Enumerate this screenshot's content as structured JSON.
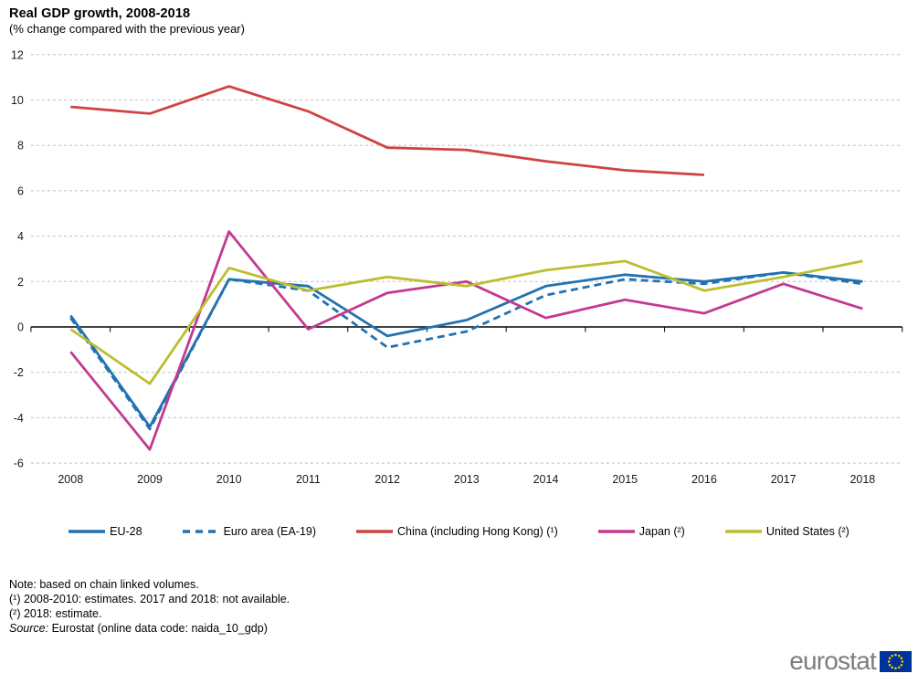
{
  "chart_data": {
    "type": "line",
    "title": "Real GDP growth, 2008-2018",
    "subtitle": "(% change compared with the previous year)",
    "x": [
      2008,
      2009,
      2010,
      2011,
      2012,
      2013,
      2014,
      2015,
      2016,
      2017,
      2018
    ],
    "series": [
      {
        "name": "EU-28",
        "style": "solid",
        "color": "#2272B2",
        "values": [
          0.5,
          -4.4,
          2.1,
          1.8,
          -0.4,
          0.3,
          1.8,
          2.3,
          2.0,
          2.4,
          2.0
        ]
      },
      {
        "name": "Euro area (EA-19)",
        "style": "dashed",
        "color": "#2272B2",
        "values": [
          0.4,
          -4.5,
          2.1,
          1.6,
          -0.9,
          -0.2,
          1.4,
          2.1,
          1.9,
          2.4,
          1.9
        ]
      },
      {
        "name": "China (including Hong Kong) (¹)",
        "style": "solid",
        "color": "#CE4343",
        "values": [
          9.7,
          9.4,
          10.6,
          9.5,
          7.9,
          7.8,
          7.3,
          6.9,
          6.7,
          null,
          null
        ]
      },
      {
        "name": "Japan (²)",
        "style": "solid",
        "color": "#C23A90",
        "values": [
          -1.1,
          -5.4,
          4.2,
          -0.1,
          1.5,
          2.0,
          0.4,
          1.2,
          0.6,
          1.9,
          0.8
        ]
      },
      {
        "name": "United States (²)",
        "style": "solid",
        "color": "#BCBE31",
        "values": [
          -0.1,
          -2.5,
          2.6,
          1.6,
          2.2,
          1.8,
          2.5,
          2.9,
          1.6,
          2.2,
          2.9
        ]
      }
    ],
    "xlabel": "",
    "ylabel": "",
    "ylim": [
      -6,
      12
    ],
    "ytick_step": 2,
    "grid": "horizontal-dashed",
    "grid_color": "#BFBFBF",
    "axis_color": "#000000",
    "legend_position": "bottom"
  },
  "notes": {
    "note": "Note: based on chain linked volumes.",
    "footnote1": "(¹) 2008-2010: estimates. 2017 and 2018: not available.",
    "footnote2": "(²) 2018: estimate.",
    "source_label": "Source:",
    "source_text": " Eurostat (online data code: naida_10_gdp)"
  },
  "logo": {
    "text": "eurostat",
    "flag_field_color": "#003399",
    "flag_star_color": "#FFCC00"
  }
}
